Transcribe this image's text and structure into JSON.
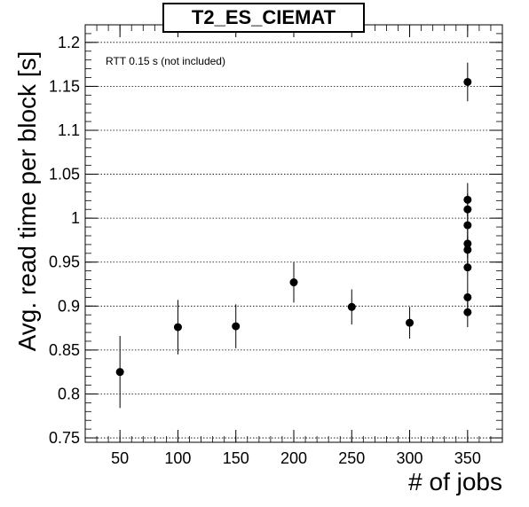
{
  "chart_data": {
    "type": "scatter",
    "title": "T2_ES_CIEMAT",
    "annotation": "RTT 0.15 s (not included)",
    "xlabel": "# of jobs",
    "ylabel": "Avg. read time per block [s]",
    "xlim": [
      20,
      380
    ],
    "ylim": [
      0.745,
      1.22
    ],
    "xticks": [
      50,
      100,
      150,
      200,
      250,
      300,
      350
    ],
    "yticks": [
      0.75,
      0.8,
      0.85,
      0.9,
      0.95,
      1,
      1.05,
      1.1,
      1.15,
      1.2
    ],
    "grid": "horizontal dotted",
    "points": [
      {
        "x": 50,
        "y": 0.825,
        "err": 0.041
      },
      {
        "x": 100,
        "y": 0.876,
        "err": 0.031
      },
      {
        "x": 150,
        "y": 0.877,
        "err": 0.025
      },
      {
        "x": 200,
        "y": 0.927,
        "err": 0.023
      },
      {
        "x": 250,
        "y": 0.899,
        "err": 0.02
      },
      {
        "x": 300,
        "y": 0.881,
        "err": 0.018
      },
      {
        "x": 350,
        "y": 1.155,
        "err": 0.022
      },
      {
        "x": 350,
        "y": 1.021,
        "err": 0.019
      },
      {
        "x": 350,
        "y": 1.01,
        "err": 0.018
      },
      {
        "x": 350,
        "y": 0.992,
        "err": 0.017
      },
      {
        "x": 350,
        "y": 0.971,
        "err": 0.016
      },
      {
        "x": 350,
        "y": 0.964,
        "err": 0.016
      },
      {
        "x": 350,
        "y": 0.944,
        "err": 0.017
      },
      {
        "x": 350,
        "y": 0.91,
        "err": 0.017
      },
      {
        "x": 350,
        "y": 0.893,
        "err": 0.017
      }
    ]
  }
}
